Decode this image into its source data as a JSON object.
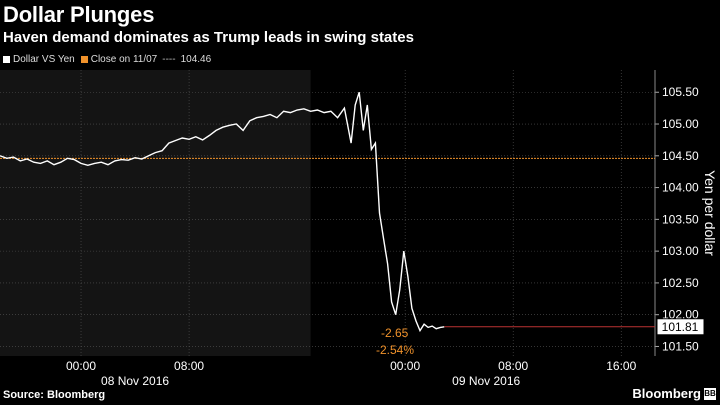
{
  "header": {
    "title": "Dollar Plunges",
    "subtitle": "Haven demand dominates as Trump leads in swing states"
  },
  "legend": {
    "series_label": "Dollar VS Yen",
    "close_label": "Close on 11/07",
    "close_sep": "----",
    "close_value": "104.46",
    "series_color": "#ffffff",
    "close_color": "#f0922b"
  },
  "footer": {
    "source": "Source: Bloomberg",
    "brand": "Bloomberg",
    "brand_mark": "BB"
  },
  "chart_data": {
    "type": "line",
    "title": "Dollar Plunges",
    "subtitle": "Haven demand dominates as Trump leads in swing states",
    "ylabel": "Yen per dollar",
    "ylim": [
      101.35,
      105.85
    ],
    "y_ticks": [
      "105.50",
      "105.00",
      "104.50",
      "104.00",
      "103.50",
      "103.00",
      "102.50",
      "102.00",
      "101.50"
    ],
    "x_range_hours": [
      -6,
      42.5
    ],
    "x_tick_labels": [
      "00:00",
      "08:00",
      "00:00",
      "08:00",
      "16:00"
    ],
    "x_tick_hours": [
      0,
      8,
      24,
      32,
      40
    ],
    "date_labels": [
      "08 Nov 2016",
      "09 Nov 2016"
    ],
    "date_label_hours": [
      4,
      30
    ],
    "shaded_until_hour": 17,
    "reference": {
      "label": "Close on 11/07",
      "value": 104.46,
      "color": "#f0922b"
    },
    "last_value": {
      "value": 101.81,
      "label": "101.81"
    },
    "annotations": [
      "-2.65",
      "-2.54%"
    ],
    "series": [
      {
        "name": "Dollar VS Yen",
        "color": "#ffffff",
        "x_hours": [
          -6,
          -5.5,
          -5,
          -4.5,
          -4,
          -3.5,
          -3,
          -2.5,
          -2,
          -1.5,
          -1,
          -0.5,
          0,
          0.5,
          1,
          1.5,
          2,
          2.5,
          3,
          3.5,
          4,
          4.5,
          5,
          5.5,
          6,
          6.5,
          7,
          7.5,
          8,
          8.5,
          9,
          9.5,
          10,
          10.5,
          11,
          11.5,
          12,
          12.5,
          13,
          13.5,
          14,
          14.5,
          15,
          15.5,
          16,
          16.5,
          17,
          17.5,
          18,
          18.5,
          19,
          19.5,
          20,
          20.3,
          20.6,
          20.9,
          21.2,
          21.5,
          21.8,
          22.1,
          22.4,
          22.7,
          23.0,
          23.3,
          23.6,
          23.9,
          24.2,
          24.5,
          24.8,
          25.1,
          25.4,
          25.7,
          26.0,
          26.3,
          26.6,
          26.9
        ],
        "values": [
          104.5,
          104.46,
          104.48,
          104.42,
          104.45,
          104.4,
          104.38,
          104.42,
          104.36,
          104.4,
          104.46,
          104.44,
          104.38,
          104.35,
          104.38,
          104.4,
          104.36,
          104.42,
          104.44,
          104.43,
          104.47,
          104.45,
          104.5,
          104.55,
          104.58,
          104.7,
          104.74,
          104.78,
          104.76,
          104.8,
          104.75,
          104.82,
          104.9,
          104.95,
          104.98,
          105.0,
          104.9,
          105.05,
          105.1,
          105.12,
          105.15,
          105.1,
          105.2,
          105.18,
          105.22,
          105.24,
          105.2,
          105.22,
          105.18,
          105.2,
          105.1,
          105.25,
          104.7,
          105.3,
          105.5,
          104.9,
          105.3,
          104.6,
          104.7,
          103.6,
          103.2,
          102.8,
          102.2,
          102.0,
          102.4,
          103.0,
          102.6,
          102.1,
          101.9,
          101.75,
          101.85,
          101.8,
          101.82,
          101.78,
          101.8,
          101.81
        ]
      }
    ]
  }
}
